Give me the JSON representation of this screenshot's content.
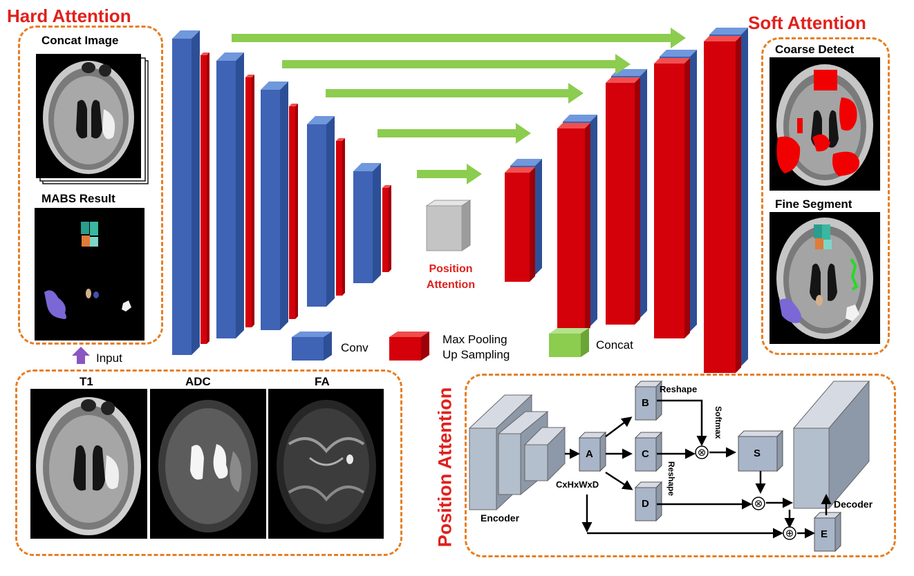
{
  "hard_attention": {
    "title": "Hard Attention",
    "concat_image": "Concat Image",
    "mabs_result": "MABS Result",
    "input_label": "Input"
  },
  "soft_attention": {
    "title": "Soft Attention",
    "coarse_detect": "Coarse Detect",
    "fine_segment": "Fine Segment"
  },
  "modalities": [
    "T1",
    "ADC",
    "FA"
  ],
  "center": {
    "position_attention_line1": "Position",
    "position_attention_line2": "Attention"
  },
  "legend": {
    "conv": "Conv",
    "pool_line1": "Max Pooling",
    "pool_line2": "Up Sampling",
    "concat": "Concat"
  },
  "position_attention_module": {
    "title": "Position Attention",
    "encoder": "Encoder",
    "decoder": "Decoder",
    "dims": "CxHxWxD",
    "reshape1": "Reshape",
    "reshape2": "Reshape",
    "softmax": "Softmax",
    "boxes": [
      "A",
      "B",
      "C",
      "D",
      "S",
      "E"
    ],
    "ops": [
      "⊗",
      "⊗",
      "⊕"
    ]
  },
  "colors": {
    "conv_blue": "#3f63b5",
    "pool_red": "#d4000a",
    "concat_green": "#8ccc4f",
    "dash_orange": "#e67e22",
    "title_red": "#e0201c",
    "box_gray": "#a9b5c8"
  }
}
